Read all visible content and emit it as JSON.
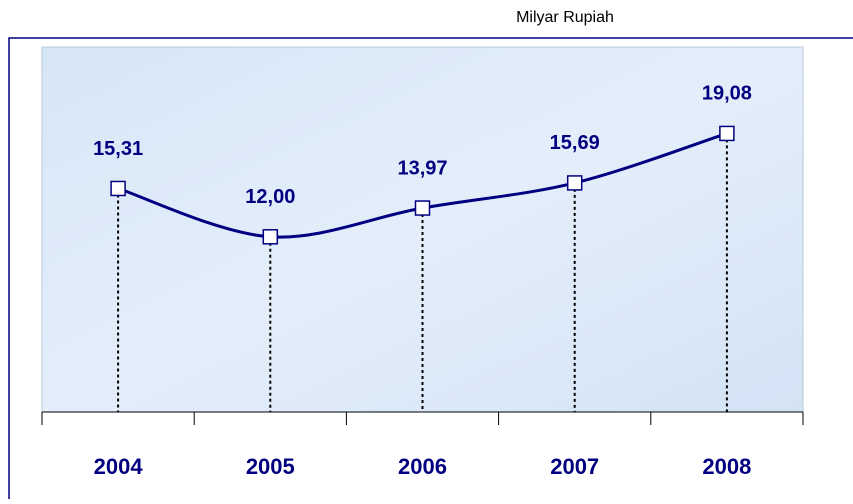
{
  "chart_data": {
    "type": "line",
    "unit_label": "Milyar Rupiah",
    "categories": [
      "2004",
      "2005",
      "2006",
      "2007",
      "2008"
    ],
    "series": [
      {
        "name": "Milyar Rupiah",
        "color": "#000080",
        "values": [
          15.31,
          12.0,
          13.97,
          15.69,
          19.08
        ],
        "value_labels": [
          "15,31",
          "12,00",
          "13,97",
          "15,69",
          "19,08"
        ]
      }
    ],
    "ylim": [
      0,
      25
    ]
  }
}
